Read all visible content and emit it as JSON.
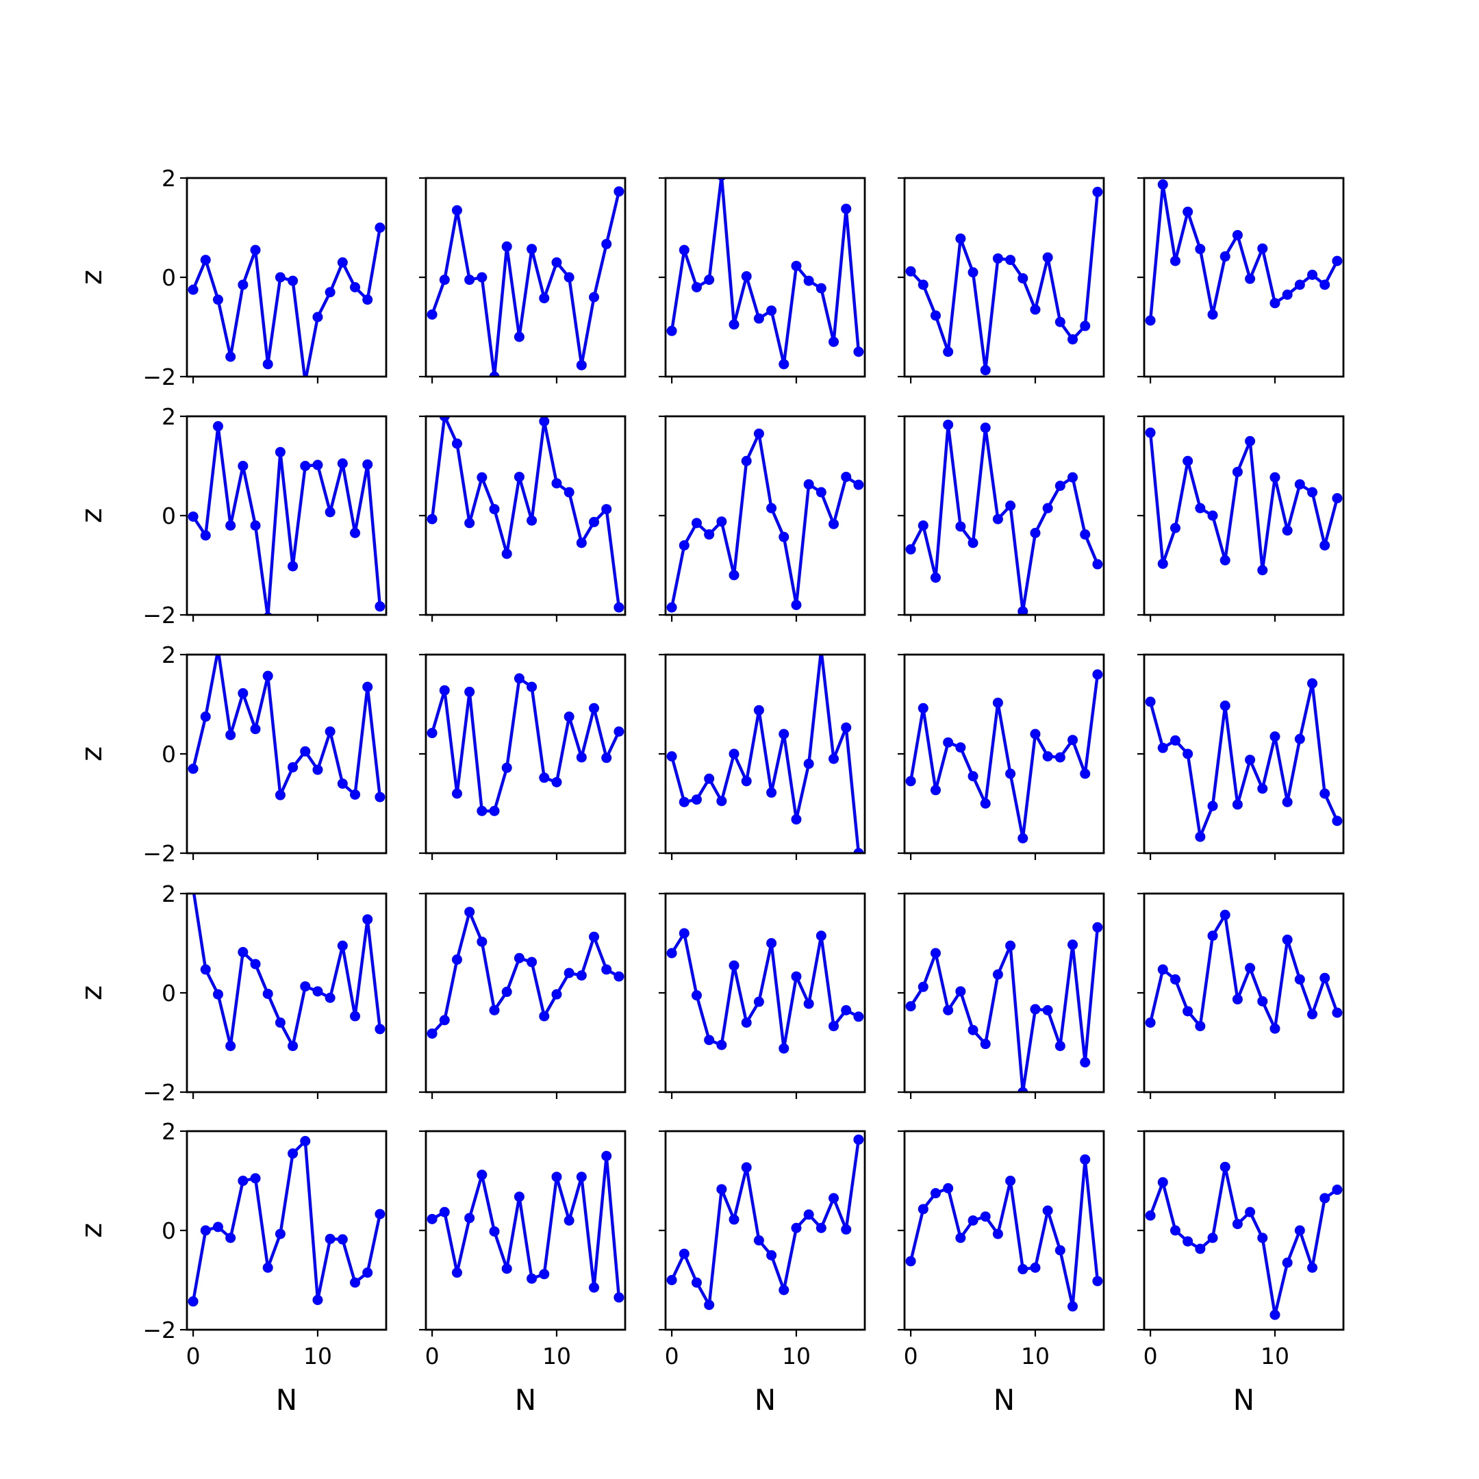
{
  "chart_data": {
    "type": "line",
    "layout": {
      "rows": 5,
      "cols": 5
    },
    "series_color": "#0000ff",
    "marker": "circle",
    "xlabel": "N",
    "ylabel": "z",
    "xlim": [
      -0.5,
      15.5
    ],
    "ylim": [
      -2,
      2
    ],
    "xticks": [
      0,
      10
    ],
    "yticks": [
      -2,
      0,
      2
    ],
    "x": [
      0,
      1,
      2,
      3,
      4,
      5,
      6,
      7,
      8,
      9,
      10,
      11,
      12,
      13,
      14,
      15
    ],
    "panels": [
      [
        -0.25,
        0.35,
        -0.45,
        -1.6,
        -0.15,
        0.55,
        -1.75,
        0.0,
        -0.07,
        -2.1,
        -0.8,
        -0.3,
        0.3,
        -0.2,
        -0.45,
        1.0
      ],
      [
        -0.75,
        -0.05,
        1.35,
        -0.05,
        0.0,
        -2.0,
        0.62,
        -1.2,
        0.57,
        -0.42,
        0.3,
        0.0,
        -1.77,
        -0.4,
        0.67,
        1.73
      ],
      [
        -1.08,
        0.55,
        -0.2,
        -0.05,
        2.05,
        -0.95,
        0.02,
        -0.83,
        -0.67,
        -1.75,
        0.23,
        -0.07,
        -0.22,
        -1.3,
        1.38,
        -1.5
      ],
      [
        0.12,
        -0.15,
        -0.77,
        -1.5,
        0.78,
        0.1,
        -1.87,
        0.38,
        0.35,
        -0.02,
        -0.65,
        0.4,
        -0.9,
        -1.25,
        -0.98,
        1.72
      ],
      [
        -0.87,
        1.87,
        0.33,
        1.32,
        0.57,
        -0.75,
        0.42,
        0.85,
        -0.03,
        0.58,
        -0.52,
        -0.35,
        -0.15,
        0.05,
        -0.15,
        0.33
      ],
      [
        -0.02,
        -0.4,
        1.8,
        -0.2,
        1.0,
        -0.2,
        -2.05,
        1.28,
        -1.02,
        1.0,
        1.02,
        0.07,
        1.05,
        -0.35,
        1.03,
        -1.83
      ],
      [
        -0.07,
        2.0,
        1.45,
        -0.15,
        0.77,
        0.13,
        -0.77,
        0.78,
        -0.1,
        1.9,
        0.65,
        0.47,
        -0.55,
        -0.13,
        0.13,
        -1.85
      ],
      [
        -1.85,
        -0.6,
        -0.15,
        -0.38,
        -0.12,
        -1.2,
        1.1,
        1.65,
        0.15,
        -0.43,
        -1.8,
        0.63,
        0.47,
        -0.17,
        0.78,
        0.62
      ],
      [
        -0.68,
        -0.2,
        -1.25,
        1.83,
        -0.22,
        -0.55,
        1.77,
        -0.07,
        0.2,
        -1.93,
        -0.35,
        0.15,
        0.6,
        0.77,
        -0.38,
        -0.98
      ],
      [
        1.67,
        -0.97,
        -0.25,
        1.1,
        0.15,
        0.0,
        -0.9,
        0.88,
        1.5,
        -1.1,
        0.77,
        -0.3,
        0.63,
        0.47,
        -0.6,
        0.35
      ],
      [
        -0.3,
        0.75,
        2.1,
        0.38,
        1.22,
        0.5,
        1.57,
        -0.83,
        -0.27,
        0.05,
        -0.32,
        0.45,
        -0.6,
        -0.82,
        1.35,
        -0.87
      ],
      [
        0.42,
        1.28,
        -0.8,
        1.25,
        -1.15,
        -1.15,
        -0.28,
        1.52,
        1.35,
        -0.48,
        -0.57,
        0.75,
        -0.07,
        0.92,
        -0.08,
        0.45
      ],
      [
        -0.05,
        -0.97,
        -0.92,
        -0.5,
        -0.95,
        0.0,
        -0.55,
        0.88,
        -0.78,
        0.4,
        -1.32,
        -0.2,
        2.1,
        -0.1,
        0.53,
        -2.0
      ],
      [
        -0.55,
        0.92,
        -0.73,
        0.23,
        0.13,
        -0.45,
        -1.0,
        1.03,
        -0.4,
        -1.7,
        0.4,
        -0.05,
        -0.07,
        0.28,
        -0.4,
        1.6
      ],
      [
        1.05,
        0.12,
        0.27,
        0.0,
        -1.67,
        -1.05,
        0.97,
        -1.02,
        -0.12,
        -0.7,
        0.35,
        -0.97,
        0.3,
        1.42,
        -0.8,
        -1.35
      ],
      [
        2.1,
        0.47,
        -0.03,
        -1.07,
        0.82,
        0.58,
        -0.02,
        -0.6,
        -1.07,
        0.13,
        0.03,
        -0.1,
        0.95,
        -0.47,
        1.48,
        -0.73
      ],
      [
        -0.82,
        -0.55,
        0.67,
        1.63,
        1.03,
        -0.35,
        0.02,
        0.7,
        0.62,
        -0.47,
        -0.03,
        0.4,
        0.35,
        1.13,
        0.47,
        0.33
      ],
      [
        0.8,
        1.2,
        -0.05,
        -0.95,
        -1.05,
        0.55,
        -0.6,
        -0.18,
        1.0,
        -1.12,
        0.33,
        -0.22,
        1.15,
        -0.67,
        -0.35,
        -0.48
      ],
      [
        -0.27,
        0.12,
        0.8,
        -0.35,
        0.03,
        -0.75,
        -1.03,
        0.37,
        0.95,
        -2.0,
        -0.33,
        -0.35,
        -1.07,
        0.97,
        -1.4,
        1.32
      ],
      [
        -0.6,
        0.47,
        0.27,
        -0.37,
        -0.67,
        1.15,
        1.57,
        -0.13,
        0.5,
        -0.17,
        -0.72,
        1.07,
        0.27,
        -0.43,
        0.3,
        -0.4
      ],
      [
        -1.43,
        0.0,
        0.07,
        -0.15,
        1.0,
        1.05,
        -0.75,
        -0.07,
        1.55,
        1.8,
        -1.4,
        -0.17,
        -0.18,
        -1.05,
        -0.85,
        0.33
      ],
      [
        0.23,
        0.37,
        -0.85,
        0.25,
        1.12,
        -0.02,
        -0.77,
        0.68,
        -0.97,
        -0.88,
        1.08,
        0.2,
        1.08,
        -1.15,
        1.5,
        -1.35
      ],
      [
        -1.0,
        -0.47,
        -1.05,
        -1.5,
        0.83,
        0.22,
        1.27,
        -0.2,
        -0.5,
        -1.2,
        0.05,
        0.32,
        0.05,
        0.65,
        0.02,
        1.83
      ],
      [
        -0.62,
        0.43,
        0.75,
        0.85,
        -0.15,
        0.2,
        0.28,
        -0.07,
        1.0,
        -0.78,
        -0.75,
        0.4,
        -0.4,
        -1.53,
        1.43,
        -1.02
      ],
      [
        0.3,
        0.97,
        0.0,
        -0.22,
        -0.37,
        -0.15,
        1.28,
        0.13,
        0.37,
        -0.15,
        -1.7,
        -0.65,
        0.0,
        -0.75,
        0.65,
        0.82
      ]
    ]
  }
}
